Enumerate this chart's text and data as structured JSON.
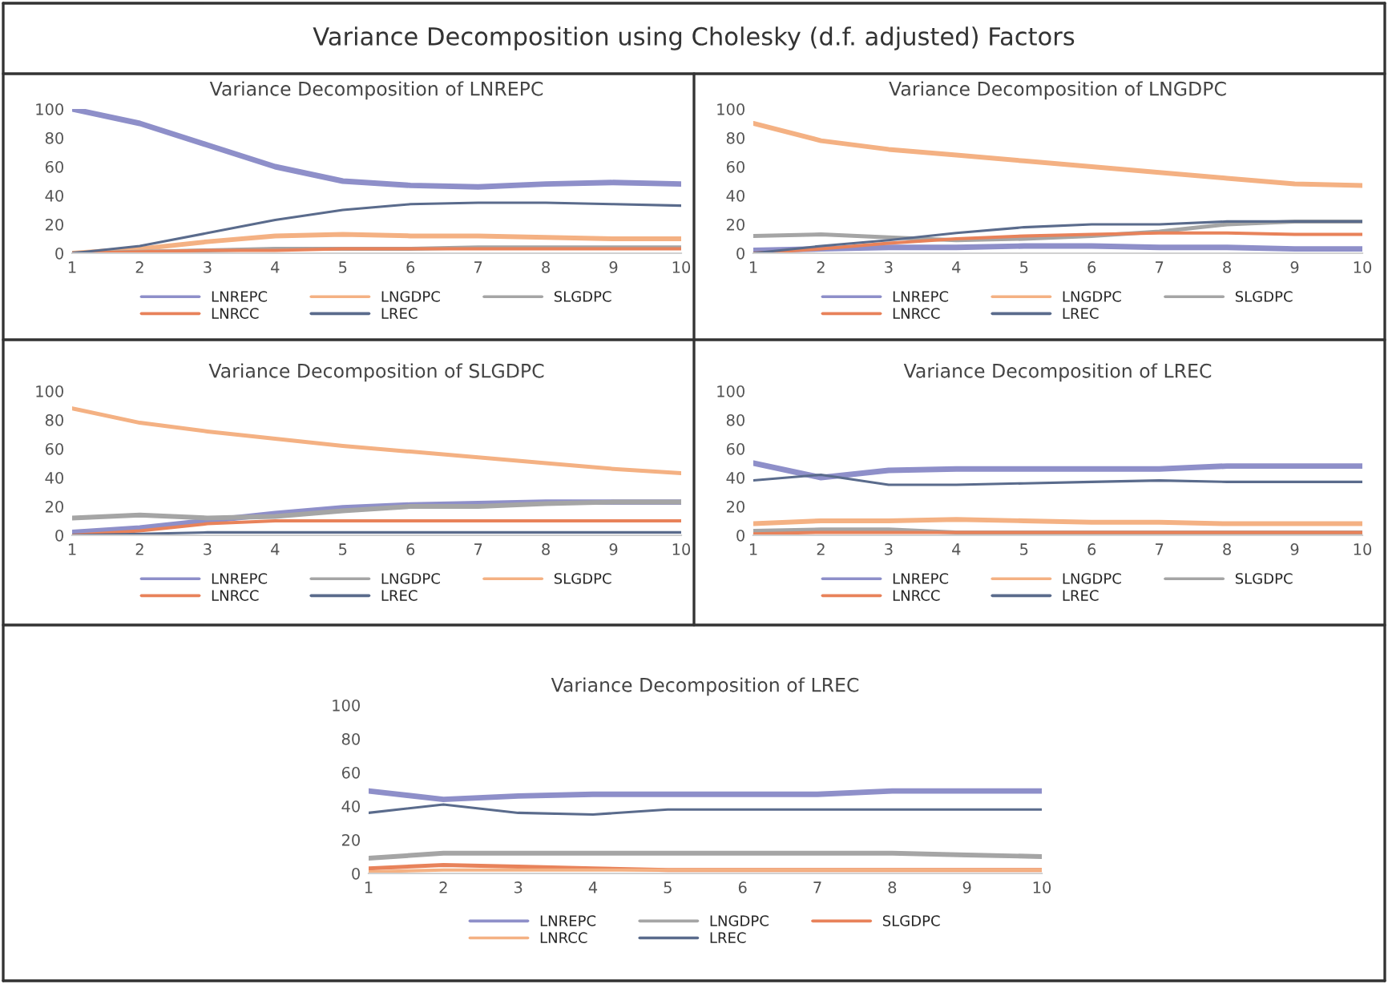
{
  "chart_data": [
    {
      "type": "other",
      "title": "Variance Decomposition using Cholesky (d.f. adjusted) Factors"
    },
    {
      "type": "line",
      "title": "Variance Decomposition of LNREPC",
      "x": [
        1,
        2,
        3,
        4,
        5,
        6,
        7,
        8,
        9,
        10
      ],
      "xlim": [
        1,
        10
      ],
      "xticks": [
        1,
        2,
        3,
        4,
        5,
        6,
        7,
        8,
        9,
        10
      ],
      "ylim": [
        0,
        100
      ],
      "yticks": [
        0,
        20,
        40,
        60,
        80,
        100
      ],
      "legend": "bottom",
      "grid": false,
      "series": [
        {
          "name": "LNREPC",
          "color": "#8e8fc9",
          "values": [
            100,
            90,
            75,
            60,
            50,
            47,
            46,
            48,
            49,
            48
          ]
        },
        {
          "name": "LNGDPC",
          "color": "#f4b183",
          "values": [
            0,
            3,
            8,
            12,
            13,
            12,
            12,
            11,
            10,
            10
          ]
        },
        {
          "name": "SLGDPC",
          "color": "#a5a5a5",
          "values": [
            0,
            1,
            2,
            3,
            3,
            3,
            4,
            4,
            4,
            4
          ]
        },
        {
          "name": "LNRCC",
          "color": "#e8825a",
          "values": [
            0,
            1,
            2,
            2,
            3,
            3,
            3,
            3,
            3,
            3
          ]
        },
        {
          "name": "LREC",
          "color": "#5a6b8c",
          "values": [
            0,
            5,
            14,
            23,
            30,
            34,
            35,
            35,
            34,
            33
          ]
        }
      ]
    },
    {
      "type": "line",
      "title": "Variance Decomposition of LNGDPC",
      "x": [
        1,
        2,
        3,
        4,
        5,
        6,
        7,
        8,
        9,
        10
      ],
      "xlim": [
        1,
        10
      ],
      "xticks": [
        1,
        2,
        3,
        4,
        5,
        6,
        7,
        8,
        9,
        10
      ],
      "ylim": [
        0,
        100
      ],
      "yticks": [
        0,
        20,
        40,
        60,
        80,
        100
      ],
      "legend": "bottom",
      "grid": false,
      "series": [
        {
          "name": "LNREPC",
          "color": "#8e8fc9",
          "values": [
            2,
            3,
            4,
            4,
            5,
            5,
            4,
            4,
            3,
            3
          ]
        },
        {
          "name": "LNGDPC",
          "color": "#f4b183",
          "values": [
            90,
            78,
            72,
            68,
            64,
            60,
            56,
            52,
            48,
            47
          ]
        },
        {
          "name": "SLGDPC",
          "color": "#a5a5a5",
          "values": [
            12,
            13,
            11,
            9,
            10,
            12,
            15,
            20,
            22,
            22
          ]
        },
        {
          "name": "LNRCC",
          "color": "#e8825a",
          "values": [
            0,
            3,
            7,
            10,
            12,
            13,
            14,
            14,
            13,
            13
          ]
        },
        {
          "name": "LREC",
          "color": "#5a6b8c",
          "values": [
            0,
            5,
            9,
            14,
            18,
            20,
            20,
            22,
            22,
            22
          ]
        }
      ]
    },
    {
      "type": "line",
      "title": "Variance Decomposition of SLGDPC",
      "x": [
        1,
        2,
        3,
        4,
        5,
        6,
        7,
        8,
        9,
        10
      ],
      "xlim": [
        1,
        10
      ],
      "xticks": [
        1,
        2,
        3,
        4,
        5,
        6,
        7,
        8,
        9,
        10
      ],
      "ylim": [
        0,
        100
      ],
      "yticks": [
        0,
        20,
        40,
        60,
        80,
        100
      ],
      "legend": "bottom",
      "grid": false,
      "series": [
        {
          "name": "LNREPC",
          "color": "#8e8fc9",
          "values": [
            2,
            5,
            10,
            15,
            19,
            21,
            22,
            23,
            23,
            23
          ]
        },
        {
          "name": "LNGDPC",
          "color": "#a5a5a5",
          "values": [
            12,
            14,
            12,
            13,
            17,
            20,
            20,
            22,
            23,
            23
          ]
        },
        {
          "name": "SLGDPC",
          "color": "#f4b183",
          "values": [
            88,
            78,
            72,
            67,
            62,
            58,
            54,
            50,
            46,
            43
          ]
        },
        {
          "name": "LNRCC",
          "color": "#e8825a",
          "values": [
            0,
            3,
            8,
            10,
            10,
            10,
            10,
            10,
            10,
            10
          ]
        },
        {
          "name": "LREC",
          "color": "#5a6b8c",
          "values": [
            0,
            1,
            2,
            2,
            2,
            2,
            2,
            2,
            2,
            2
          ]
        }
      ]
    },
    {
      "type": "line",
      "title": "Variance Decomposition of LREC",
      "x": [
        1,
        2,
        3,
        4,
        5,
        6,
        7,
        8,
        9,
        10
      ],
      "xlim": [
        1,
        10
      ],
      "xticks": [
        1,
        2,
        3,
        4,
        5,
        6,
        7,
        8,
        9,
        10
      ],
      "ylim": [
        0,
        100
      ],
      "yticks": [
        0,
        20,
        40,
        60,
        80,
        100
      ],
      "legend": "bottom",
      "grid": false,
      "series": [
        {
          "name": "LNREPC",
          "color": "#8e8fc9",
          "values": [
            50,
            40,
            45,
            46,
            46,
            46,
            46,
            48,
            48,
            48
          ]
        },
        {
          "name": "LNGDPC",
          "color": "#f4b183",
          "values": [
            8,
            10,
            10,
            11,
            10,
            9,
            9,
            8,
            8,
            8
          ]
        },
        {
          "name": "SLGDPC",
          "color": "#a5a5a5",
          "values": [
            3,
            4,
            4,
            2,
            2,
            2,
            2,
            2,
            2,
            2
          ]
        },
        {
          "name": "LNRCC",
          "color": "#e8825a",
          "values": [
            1,
            2,
            2,
            2,
            2,
            2,
            2,
            2,
            2,
            2
          ]
        },
        {
          "name": "LREC",
          "color": "#5a6b8c",
          "values": [
            38,
            42,
            35,
            35,
            36,
            37,
            38,
            37,
            37,
            37
          ]
        }
      ]
    },
    {
      "type": "line",
      "title": "Variance Decomposition of LREC",
      "x": [
        1,
        2,
        3,
        4,
        5,
        6,
        7,
        8,
        9,
        10
      ],
      "xlim": [
        1,
        10
      ],
      "xticks": [
        1,
        2,
        3,
        4,
        5,
        6,
        7,
        8,
        9,
        10
      ],
      "ylim": [
        0,
        100
      ],
      "yticks": [
        0,
        20,
        40,
        60,
        80,
        100
      ],
      "legend": "bottom",
      "grid": false,
      "series": [
        {
          "name": "LNREPC",
          "color": "#8e8fc9",
          "values": [
            49,
            44,
            46,
            47,
            47,
            47,
            47,
            49,
            49,
            49
          ]
        },
        {
          "name": "LNGDPC",
          "color": "#a5a5a5",
          "values": [
            9,
            12,
            12,
            12,
            12,
            12,
            12,
            12,
            11,
            10
          ]
        },
        {
          "name": "SLGDPC",
          "color": "#e8825a",
          "values": [
            3,
            5,
            4,
            3,
            2,
            2,
            2,
            2,
            2,
            2
          ]
        },
        {
          "name": "LNRCC",
          "color": "#f4b183",
          "values": [
            1,
            2,
            2,
            2,
            2,
            2,
            2,
            2,
            2,
            2
          ]
        },
        {
          "name": "LREC",
          "color": "#5a6b8c",
          "values": [
            36,
            41,
            36,
            35,
            38,
            38,
            38,
            38,
            38,
            38
          ]
        }
      ]
    }
  ]
}
